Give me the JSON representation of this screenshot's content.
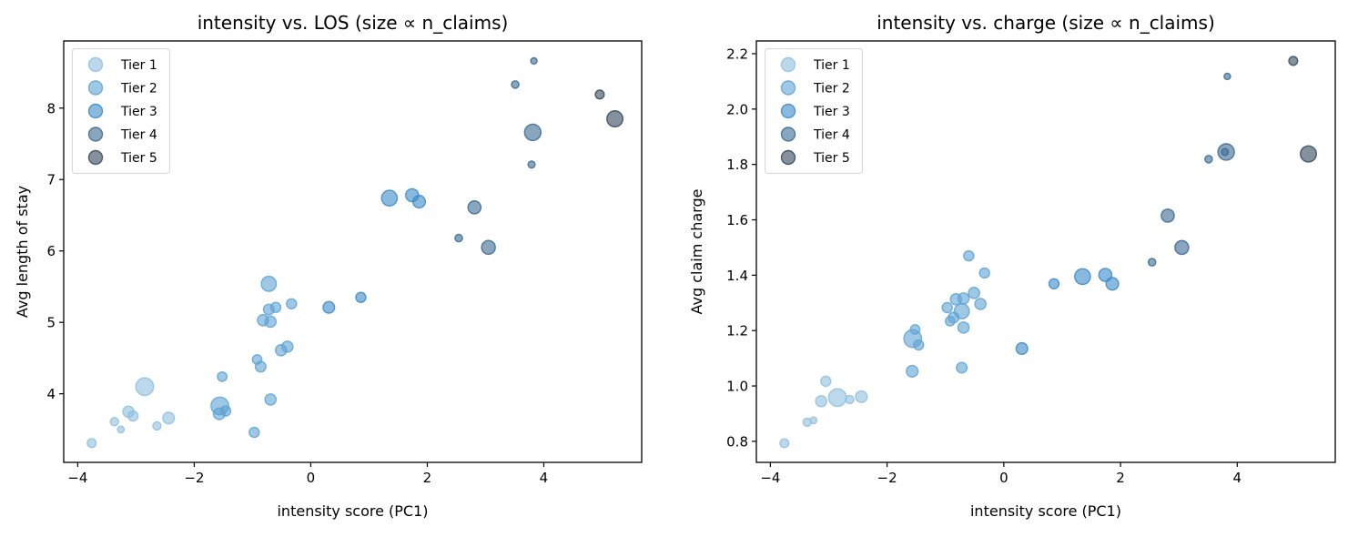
{
  "tiers": [
    {
      "label": "Tier 1",
      "color": "#8fbfdf"
    },
    {
      "label": "Tier 2",
      "color": "#5fa3d3"
    },
    {
      "label": "Tier 3",
      "color": "#3a8bc8"
    },
    {
      "label": "Tier 4",
      "color": "#3b6a92"
    },
    {
      "label": "Tier 5",
      "color": "#34495e"
    }
  ],
  "chart_data": [
    {
      "type": "scatter",
      "title": "intensity vs. LOS (size ∝ n_claims)",
      "xlabel": "intensity score (PC1)",
      "ylabel": "Avg length of stay",
      "xlim": [
        -4.24,
        5.68
      ],
      "ylim": [
        3.04,
        8.94
      ],
      "xticks": [
        "-4",
        "-2",
        "0",
        "2",
        "4"
      ],
      "xtick_values": [
        -4,
        -2,
        0,
        2,
        4
      ],
      "yticks": [
        "4",
        "5",
        "6",
        "7",
        "8"
      ],
      "ytick_values": [
        4,
        5,
        6,
        7,
        8
      ],
      "y_field": "los",
      "legend": "top-left",
      "grid": false
    },
    {
      "type": "scatter",
      "title": "intensity vs. charge (size ∝ n_claims)",
      "xlabel": "intensity score (PC1)",
      "ylabel": "Avg claim charge",
      "xlim": [
        -4.24,
        5.68
      ],
      "ylim": [
        0.724,
        2.246
      ],
      "xticks": [
        "-4",
        "-2",
        "0",
        "2",
        "4"
      ],
      "xtick_values": [
        -4,
        -2,
        0,
        2,
        4
      ],
      "yticks": [
        "0.8",
        "1.0",
        "1.2",
        "1.4",
        "1.6",
        "1.8",
        "2.0",
        "2.2"
      ],
      "ytick_values": [
        0.8,
        1.0,
        1.2,
        1.4,
        1.6,
        1.8,
        2.0,
        2.2
      ],
      "y_field": "charge",
      "legend": "top-left",
      "grid": false
    }
  ],
  "points": [
    {
      "x": -3.76,
      "los": 3.31,
      "charge": 0.793,
      "tier": 1,
      "n_claims": 35
    },
    {
      "x": -3.37,
      "los": 3.61,
      "charge": 0.869,
      "tier": 1,
      "n_claims": 30
    },
    {
      "x": -3.26,
      "los": 3.5,
      "charge": 0.876,
      "tier": 1,
      "n_claims": 20
    },
    {
      "x": -3.13,
      "los": 3.75,
      "charge": 0.945,
      "tier": 1,
      "n_claims": 55
    },
    {
      "x": -3.05,
      "los": 3.69,
      "charge": 1.017,
      "tier": 1,
      "n_claims": 45
    },
    {
      "x": -2.85,
      "los": 4.1,
      "charge": 0.958,
      "tier": 1,
      "n_claims": 140
    },
    {
      "x": -2.64,
      "los": 3.55,
      "charge": 0.951,
      "tier": 1,
      "n_claims": 30
    },
    {
      "x": -2.44,
      "los": 3.66,
      "charge": 0.961,
      "tier": 1,
      "n_claims": 60
    },
    {
      "x": -1.57,
      "los": 3.72,
      "charge": 1.053,
      "tier": 2,
      "n_claims": 60
    },
    {
      "x": -1.56,
      "los": 3.83,
      "charge": 1.171,
      "tier": 2,
      "n_claims": 140
    },
    {
      "x": -1.52,
      "los": 4.24,
      "charge": 1.204,
      "tier": 2,
      "n_claims": 40
    },
    {
      "x": -1.46,
      "los": 3.76,
      "charge": 1.148,
      "tier": 2,
      "n_claims": 45
    },
    {
      "x": -0.97,
      "los": 3.46,
      "charge": 1.283,
      "tier": 2,
      "n_claims": 45
    },
    {
      "x": -0.92,
      "los": 4.48,
      "charge": 1.234,
      "tier": 2,
      "n_claims": 40
    },
    {
      "x": -0.86,
      "los": 4.38,
      "charge": 1.247,
      "tier": 2,
      "n_claims": 50
    },
    {
      "x": -0.82,
      "los": 5.03,
      "charge": 1.313,
      "tier": 2,
      "n_claims": 55
    },
    {
      "x": -0.72,
      "los": 5.54,
      "charge": 1.27,
      "tier": 2,
      "n_claims": 100
    },
    {
      "x": -0.72,
      "los": 5.18,
      "charge": 1.066,
      "tier": 2,
      "n_claims": 50
    },
    {
      "x": -0.69,
      "los": 5.01,
      "charge": 1.211,
      "tier": 2,
      "n_claims": 55
    },
    {
      "x": -0.69,
      "los": 3.92,
      "charge": 1.316,
      "tier": 2,
      "n_claims": 55
    },
    {
      "x": -0.6,
      "los": 5.21,
      "charge": 1.47,
      "tier": 2,
      "n_claims": 45
    },
    {
      "x": -0.51,
      "los": 4.61,
      "charge": 1.336,
      "tier": 2,
      "n_claims": 55
    },
    {
      "x": -0.4,
      "los": 4.66,
      "charge": 1.296,
      "tier": 2,
      "n_claims": 55
    },
    {
      "x": -0.33,
      "los": 5.26,
      "charge": 1.408,
      "tier": 2,
      "n_claims": 45
    },
    {
      "x": 0.31,
      "los": 5.21,
      "charge": 1.135,
      "tier": 3,
      "n_claims": 60
    },
    {
      "x": 0.86,
      "los": 5.35,
      "charge": 1.369,
      "tier": 3,
      "n_claims": 45
    },
    {
      "x": 1.35,
      "los": 6.74,
      "charge": 1.395,
      "tier": 3,
      "n_claims": 110
    },
    {
      "x": 1.74,
      "los": 6.78,
      "charge": 1.401,
      "tier": 3,
      "n_claims": 75
    },
    {
      "x": 1.86,
      "los": 6.69,
      "charge": 1.369,
      "tier": 3,
      "n_claims": 70
    },
    {
      "x": 2.54,
      "los": 6.18,
      "charge": 1.447,
      "tier": 4,
      "n_claims": 25
    },
    {
      "x": 2.81,
      "los": 6.61,
      "charge": 1.615,
      "tier": 4,
      "n_claims": 75
    },
    {
      "x": 3.05,
      "los": 6.05,
      "charge": 1.5,
      "tier": 4,
      "n_claims": 85
    },
    {
      "x": 3.51,
      "los": 8.33,
      "charge": 1.819,
      "tier": 4,
      "n_claims": 25
    },
    {
      "x": 3.81,
      "los": 7.66,
      "charge": 1.845,
      "tier": 4,
      "n_claims": 120
    },
    {
      "x": 3.79,
      "los": 7.21,
      "charge": 1.845,
      "tier": 4,
      "n_claims": 22
    },
    {
      "x": 3.83,
      "los": 8.66,
      "charge": 2.118,
      "tier": 4,
      "n_claims": 18
    },
    {
      "x": 4.96,
      "los": 8.19,
      "charge": 2.174,
      "tier": 5,
      "n_claims": 35
    },
    {
      "x": 5.22,
      "los": 7.85,
      "charge": 1.838,
      "tier": 5,
      "n_claims": 115
    }
  ]
}
